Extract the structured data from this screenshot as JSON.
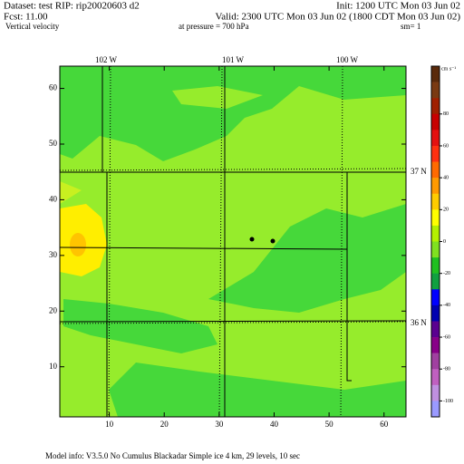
{
  "header": {
    "dataset": "Dataset: test   RIP: rip20020603  d2",
    "init": "Init: 1200 UTC Mon 03 Jun 02",
    "fcst": "Fcst:    11.00",
    "valid": "Valid: 2300 UTC Mon 03 Jun 02 (1800 CDT Mon 03 Jun 02)",
    "field": "Vertical velocity",
    "pressure": "at pressure =   700 hPa",
    "smoothing": "sm= 1"
  },
  "map": {
    "xlim": [
      1,
      64
    ],
    "ylim": [
      1,
      64
    ],
    "xticks": [
      10,
      20,
      30,
      40,
      50,
      60
    ],
    "yticks": [
      10,
      20,
      30,
      40,
      50,
      60
    ],
    "longitude_labels": [
      "102 W",
      "101 W",
      "100 W"
    ],
    "latitude_labels": [
      "37 N",
      "36 N"
    ]
  },
  "colorbar": {
    "unit": "cm s⁻¹",
    "lim": [
      -110,
      110
    ],
    "colors": [
      "#5a2a0a",
      "#7a3a12",
      "#a02000",
      "#c80000",
      "#e41010",
      "#ff3010",
      "#ff6a00",
      "#ff9a00",
      "#ffcc00",
      "#ffff00",
      "#b4f000",
      "#80e020",
      "#20c020",
      "#10a040",
      "#0000ff",
      "#0000b0",
      "#5a0090",
      "#880088",
      "#a040a0",
      "#c060c0",
      "#c090e0",
      "#9a9aff"
    ],
    "ticks": [
      80,
      60,
      40,
      20,
      0,
      -20,
      -40,
      -60,
      -80,
      -100
    ]
  },
  "footer": "Model info: V3.5.0  No Cumulus  Blackadar  Simple ice    4 km,  29 levels,   10 sec"
}
